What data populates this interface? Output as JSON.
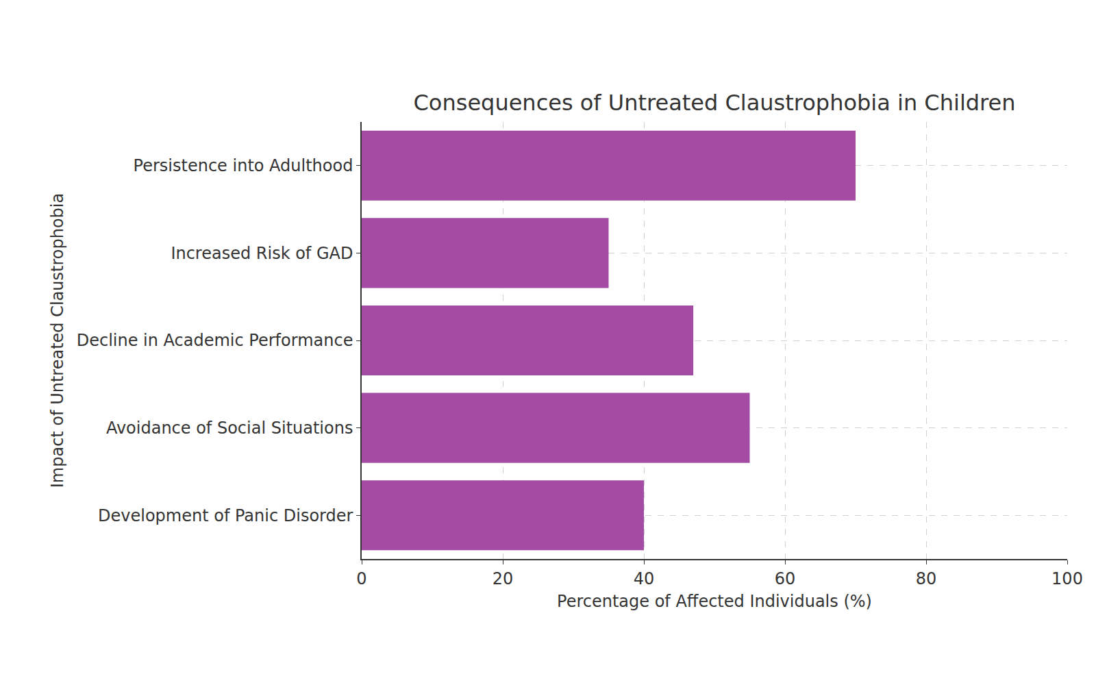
{
  "chart_data": {
    "type": "bar",
    "orientation": "horizontal",
    "title": "Consequences of Untreated Claustrophobia in Children",
    "x_label": "Percentage of Affected Individuals (%)",
    "y_label": "Impact of Untreated Claustrophobia",
    "categories": [
      "Development of Panic Disorder",
      "Avoidance of Social Situations",
      "Decline in Academic Performance",
      "Increased Risk of GAD",
      "Persistence into Adulthood"
    ],
    "values": [
      40,
      55,
      47,
      35,
      70
    ],
    "color": "#a44ca4",
    "xlim": [
      0,
      100
    ],
    "xticks": [
      0,
      20,
      40,
      60,
      80,
      100
    ],
    "grid": true
  }
}
